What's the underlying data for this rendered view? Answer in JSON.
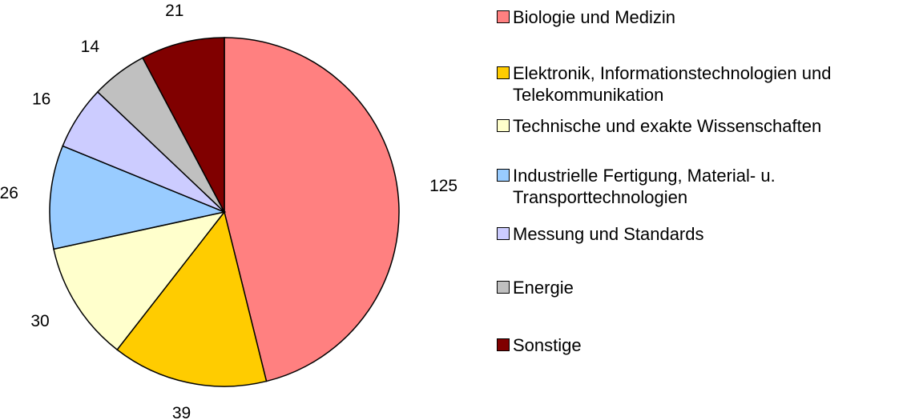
{
  "chart_data": {
    "type": "pie",
    "categories": [
      "Biologie und Medizin",
      "Elektronik, Informationstechnologien und Telekommunikation",
      "Technische und exakte Wissenschaften",
      "Industrielle Fertigung, Material- u. Transporttechnologien",
      "Messung und Standards",
      "Energie",
      "Sonstige"
    ],
    "values": [
      125,
      39,
      30,
      26,
      16,
      14,
      21
    ],
    "colors": [
      "#FF8080",
      "#FFCC00",
      "#FFFFCC",
      "#99CCFF",
      "#CCCCFF",
      "#C0C0C0",
      "#800000"
    ],
    "legend": "right"
  }
}
